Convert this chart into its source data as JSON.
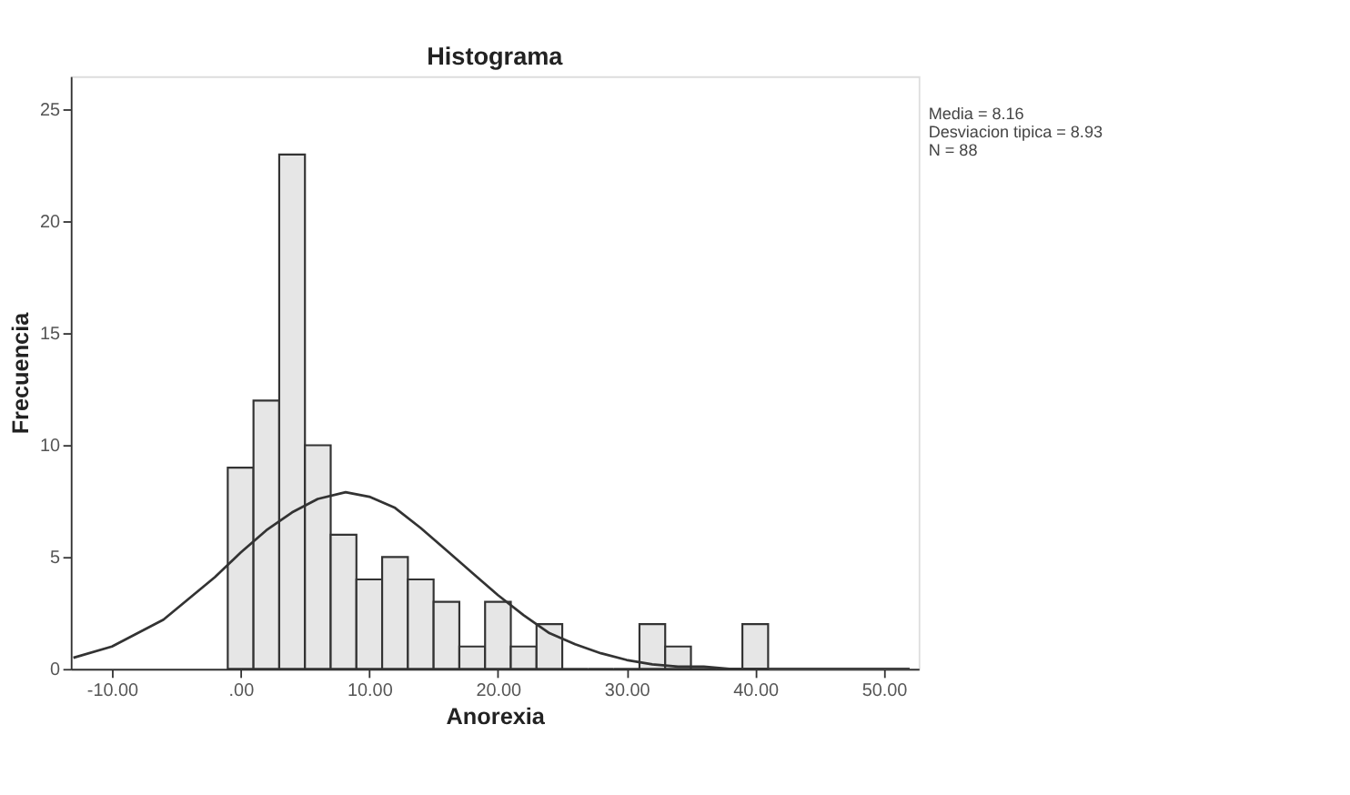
{
  "chart_data": {
    "type": "histogram",
    "title": "Histograma",
    "xlabel": "Anorexia",
    "ylabel": "Frecuencia",
    "bins": [
      -1,
      1,
      3,
      5,
      7,
      9,
      11,
      13,
      15,
      17,
      19,
      21,
      23,
      25,
      27,
      29,
      31,
      33,
      35,
      37,
      39,
      41
    ],
    "values": [
      9,
      12,
      23,
      10,
      6,
      4,
      5,
      4,
      3,
      1,
      3,
      1,
      2,
      0,
      0,
      0,
      2,
      1,
      0,
      0,
      2
    ],
    "color": "#e6e6e6",
    "series": [
      {
        "type": "line",
        "color": "#333333",
        "x": [
          -13,
          -10,
          -6,
          -2,
          0,
          2,
          4,
          6,
          8.16,
          10,
          12,
          14,
          16,
          18,
          20,
          22,
          24,
          26,
          28,
          30,
          32,
          34,
          36,
          38,
          40,
          44,
          52
        ],
        "values": [
          0.5,
          1.0,
          2.2,
          4.1,
          5.2,
          6.2,
          7.0,
          7.6,
          7.9,
          7.7,
          7.2,
          6.3,
          5.3,
          4.3,
          3.3,
          2.4,
          1.6,
          1.1,
          0.7,
          0.4,
          0.2,
          0.1,
          0.1,
          0,
          0,
          0,
          0
        ]
      }
    ],
    "xlim": [
      -13.2,
      52.7
    ],
    "ylim": [
      0,
      26.5
    ],
    "xticks": [
      {
        "value": -10,
        "label": "-10.00"
      },
      {
        "value": 0,
        "label": ".00"
      },
      {
        "value": 10,
        "label": "10.00"
      },
      {
        "value": 20,
        "label": "20.00"
      },
      {
        "value": 30,
        "label": "30.00"
      },
      {
        "value": 40,
        "label": "40.00"
      },
      {
        "value": 50,
        "label": "50.00"
      }
    ],
    "yticks": [
      0,
      5,
      10,
      15,
      20,
      25
    ],
    "grid": false,
    "annotations": [
      "Media = 8.16",
      "Desviacion tipica = 8.93",
      "N = 88"
    ]
  }
}
